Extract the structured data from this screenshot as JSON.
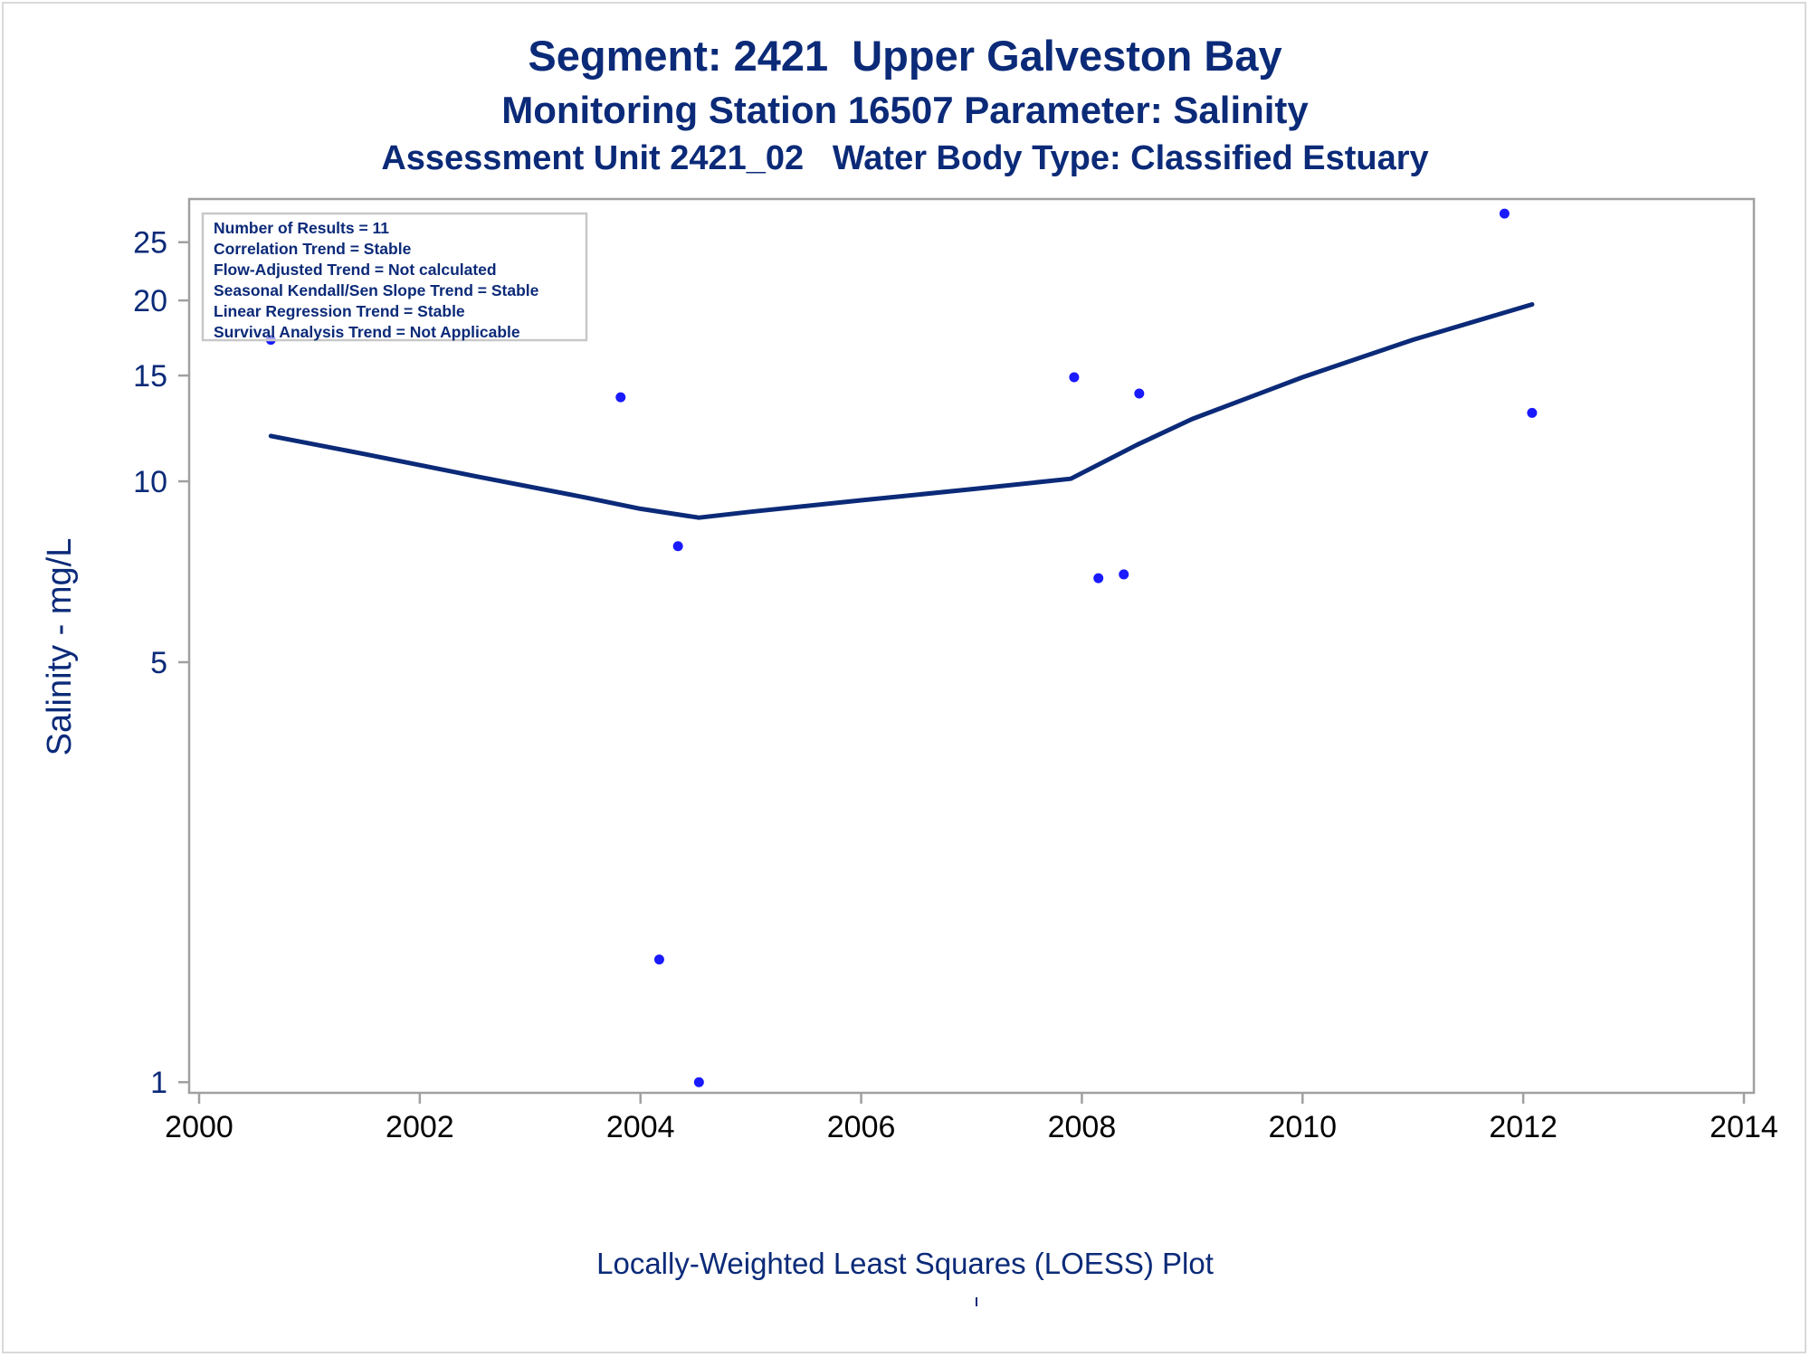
{
  "titles": {
    "line1": "Segment: 2421  Upper Galveston Bay",
    "line2": "Monitoring Station 16507 Parameter: Salinity",
    "line3": "Assessment Unit 2421_02   Water Body Type: Classified Estuary"
  },
  "info_box": {
    "lines": [
      "Number of Results = 11",
      "Correlation Trend = Stable",
      "Flow-Adjusted Trend = Not calculated",
      "Seasonal Kendall/Sen Slope Trend = Stable",
      "Linear Regression Trend = Stable",
      "Survival Analysis Trend = Not Applicable"
    ]
  },
  "footnote": "Locally-Weighted Least Squares (LOESS) Plot",
  "colors": {
    "title": "#0b2a78",
    "axis_text": "#0b2a78",
    "points": "#1a1aff",
    "loess_line": "#0b2a78",
    "axis_frame": "#a0a0a0"
  },
  "chart_data": {
    "type": "scatter",
    "xlabel": "",
    "ylabel": "Salinity - mg/L",
    "y_scale": "log",
    "xlim": [
      2000,
      2014
    ],
    "ylim": [
      0.96,
      29.5
    ],
    "x_ticks": [
      2000,
      2002,
      2004,
      2006,
      2008,
      2010,
      2012,
      2014
    ],
    "y_ticks": [
      1,
      5,
      10,
      15,
      20,
      25
    ],
    "grid": false,
    "series": [
      {
        "type": "scatter",
        "points": [
          {
            "x": 2000.65,
            "y": 17.2
          },
          {
            "x": 2003.82,
            "y": 13.8
          },
          {
            "x": 2004.17,
            "y": 1.6
          },
          {
            "x": 2004.34,
            "y": 7.8
          },
          {
            "x": 2004.53,
            "y": 1.0
          },
          {
            "x": 2007.93,
            "y": 14.9
          },
          {
            "x": 2008.15,
            "y": 6.9
          },
          {
            "x": 2008.38,
            "y": 7.0
          },
          {
            "x": 2008.52,
            "y": 14.0
          },
          {
            "x": 2011.83,
            "y": 27.9
          },
          {
            "x": 2012.08,
            "y": 13.0
          }
        ]
      },
      {
        "type": "line",
        "points": [
          {
            "x": 2000.65,
            "y": 11.9
          },
          {
            "x": 2001.5,
            "y": 11.1
          },
          {
            "x": 2002.5,
            "y": 10.2
          },
          {
            "x": 2003.5,
            "y": 9.4
          },
          {
            "x": 2004.0,
            "y": 9.0
          },
          {
            "x": 2004.53,
            "y": 8.7
          },
          {
            "x": 2005.0,
            "y": 8.9
          },
          {
            "x": 2006.0,
            "y": 9.3
          },
          {
            "x": 2007.0,
            "y": 9.7
          },
          {
            "x": 2007.9,
            "y": 10.1
          },
          {
            "x": 2008.5,
            "y": 11.5
          },
          {
            "x": 2009.0,
            "y": 12.7
          },
          {
            "x": 2010.0,
            "y": 14.9
          },
          {
            "x": 2011.0,
            "y": 17.2
          },
          {
            "x": 2012.08,
            "y": 19.7
          }
        ]
      }
    ]
  }
}
